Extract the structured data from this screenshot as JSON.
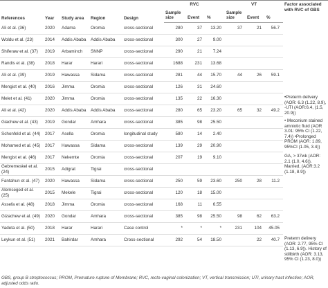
{
  "header": {
    "columns": [
      "References",
      "Year",
      "Study area",
      "Region",
      "Design"
    ],
    "rvc": "RVC",
    "vt": "VT",
    "factor": "Factor associated with RVC of GBS",
    "sub": [
      "Sample size",
      "Event",
      "%"
    ]
  },
  "rows": [
    [
      "Ali et al. (36)",
      "2020",
      "Adama",
      "Oromia",
      "cross-sectional",
      "280",
      "37",
      "13.20",
      "37",
      "21",
      "56.7",
      null
    ],
    [
      "Woldu et al. (23)",
      "2014",
      "Addis Ababa",
      "Addis Ababa",
      "cross-sectional",
      "300",
      "27",
      "9.00",
      null,
      null,
      null,
      null
    ],
    [
      "Shiferaw et al. (37)",
      "2019",
      "Arbaminch",
      "SNNP",
      "cross-sectional",
      "290",
      "21",
      "7.24",
      null,
      null,
      null,
      null
    ],
    [
      "Randis et al. (38)",
      "2018",
      "Harar",
      "Harari",
      "cross-sectional",
      "1688",
      "231",
      "13.68",
      null,
      null,
      null,
      null
    ],
    [
      "Ali et al. (39)",
      "2019",
      "Hawassa",
      "Sidama",
      "cross-sectional",
      "281",
      "44",
      "15.70",
      "44",
      "26",
      "59.1",
      null
    ],
    [
      "Mengist et al. (40)",
      "2016",
      "Jimma",
      "Oromia",
      "cross-sectional",
      "126",
      "31",
      "24.60",
      null,
      null,
      null,
      null
    ],
    [
      "Melet et al. (41)",
      "2020",
      "Jimma",
      "Oromia",
      "cross-sectional",
      "135",
      "22",
      "16.30",
      null,
      null,
      null,
      "•Preterm delivery (AOR: 6.3 (1.22, 8.9), -UTI (AOR:6.4, (1.5, 20.9))"
    ],
    [
      "Ali et al. (42)",
      "2020",
      "Addis Ababa",
      "Addis Ababa",
      "cross-sectional",
      "280",
      "65",
      "23.20",
      "65",
      "32",
      "49.2",
      null
    ],
    [
      "Giachew et al. (43)",
      "2019",
      "Gondar",
      "Amhara",
      "cross-sectional",
      "385",
      "98",
      "25.50",
      null,
      null,
      null,
      "• Meconium stained amniotic fluid (AOR 3.01: 95% CI (1.22, 7.4)) •Prolonged PROM (AOR: 1.89, 95%CI (1.05, 3.4))"
    ],
    [
      "Schonfeld et al. (44)",
      "2017",
      "Asella",
      "Oromia",
      "longitudinal study",
      "580",
      "14",
      "2.40",
      null,
      null,
      null,
      null
    ],
    [
      "Mohamed et al. (45)",
      "2017",
      "Hawassa",
      "Sidama",
      "cross-sectional",
      "139",
      "29",
      "20.90",
      null,
      null,
      null,
      null
    ],
    [
      "Mengist et al. (46)",
      "2017",
      "Nekemte",
      "Oromia",
      "cross-sectional",
      "207",
      "19",
      "9.10",
      null,
      null,
      null,
      "GA, > 37wk (AOR: 2.1 (1.0, 4.6)). Married, (AOR:3.2 (1.18, 8.9))"
    ],
    [
      "Gebremeskel et al. (24)",
      "2015",
      "Adigrat",
      "Tigrai",
      "cross-sectional",
      null,
      null,
      null,
      null,
      null,
      null,
      null
    ],
    [
      "Fantahun et al. (47)",
      "2020",
      "Hawassa",
      "Sidama",
      "cross-sectional",
      "250",
      "59",
      "23.60",
      "250",
      "28",
      "11.2",
      null
    ],
    [
      "Alemseged et al. (25)",
      "2015",
      "Mekele",
      "Tigrai",
      "cross-sectional",
      "120",
      "18",
      "15.00",
      null,
      null,
      null,
      null
    ],
    [
      "Assefa et al. (48)",
      "2018",
      "Jimma",
      "Oromia",
      "cross-sectional",
      "168",
      "11",
      "6.55",
      null,
      null,
      null,
      null
    ],
    [
      "Gizachew et al. (49)",
      "2020",
      "Gondar",
      "Amhara",
      "cross-sectional",
      "385",
      "98",
      "25.50",
      "98",
      "62",
      "63.2",
      null
    ],
    [
      "Yadeta et al. (50)",
      "2018",
      "Harar",
      "Harari",
      "Case control",
      "*",
      "*",
      "*",
      "231",
      "104",
      "45.05",
      null
    ],
    [
      "Leykun et al. (51)",
      "2021",
      "Bahirdar",
      "Amhara",
      "Cross-sectional",
      "292",
      "54",
      "18.50",
      null,
      "22",
      "40.7",
      "Preterm delivery (AOR: 2.77, 95% CI (1.13, 6.9)). History of stillbirth (AOR: 3.13, 95% CI (1.23, 8.0))"
    ]
  ],
  "footnote": "GBS, group B streptococcus; PROM, Premature rupture of Membrane; RVC, recto-vaginal colonization; VT, vertical transmission; UTI, urinary tract infection; AOR, adjusted odds ratio."
}
